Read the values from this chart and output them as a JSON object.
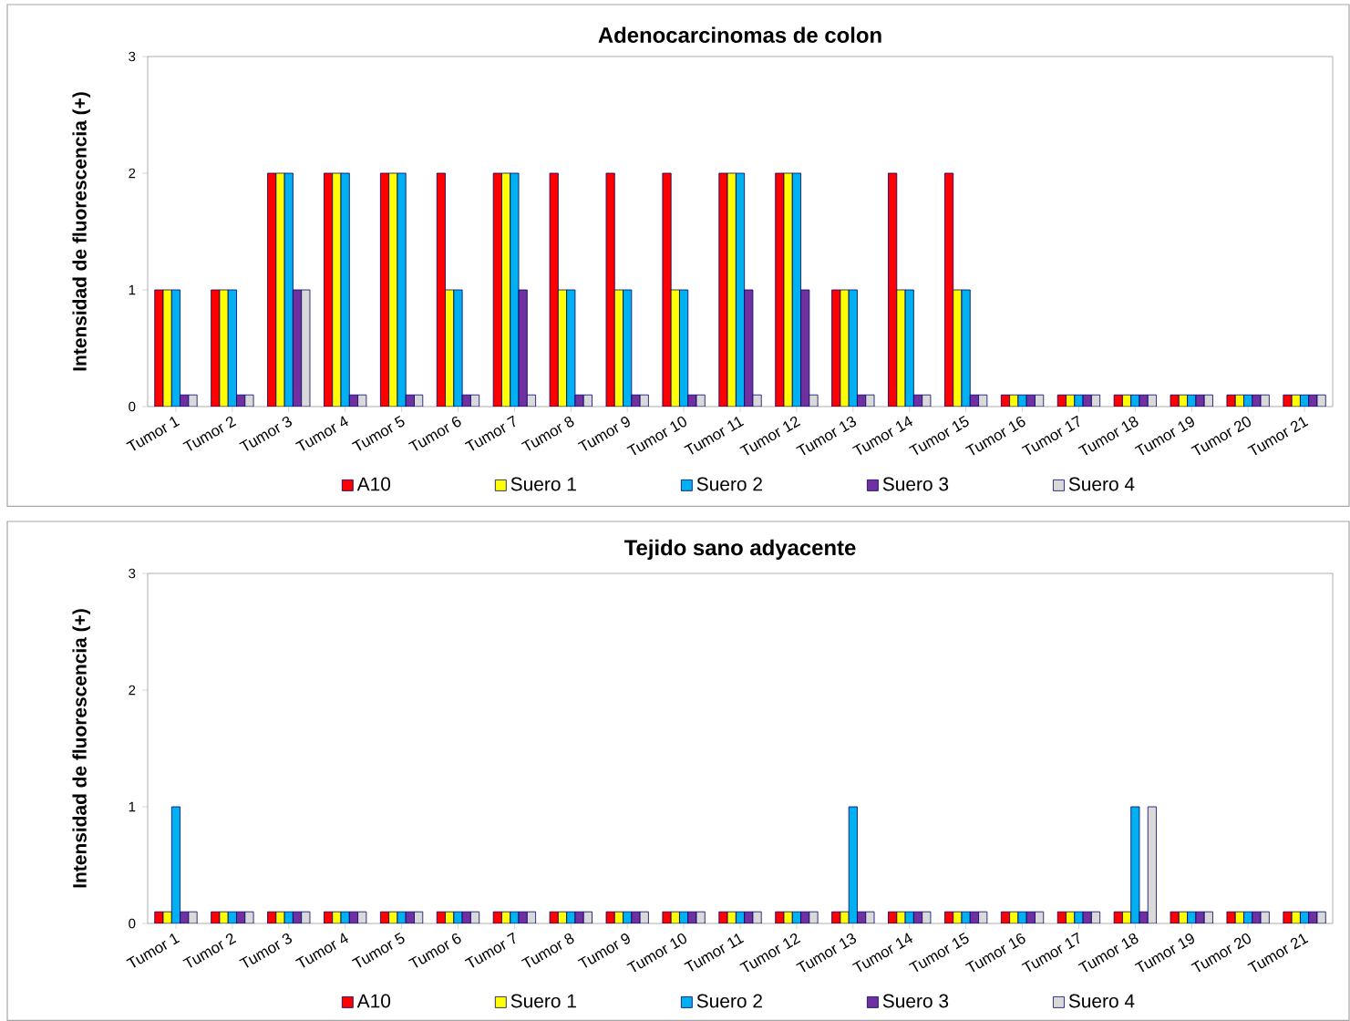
{
  "chart_data": [
    {
      "type": "bar",
      "title": "Adenocarcinomas de colon",
      "ylabel": "Intensidad  de fluorescencia (+)",
      "categories": [
        "Tumor 1",
        "Tumor 2",
        "Tumor 3",
        "Tumor 4",
        "Tumor 5",
        "Tumor 6",
        "Tumor 7",
        "Tumor 8",
        "Tumor 9",
        "Tumor 10",
        "Tumor 11",
        "Tumor 12",
        "Tumor 13",
        "Tumor 14",
        "Tumor 15",
        "Tumor 16",
        "Tumor 17",
        "Tumor 18",
        "Tumor 19",
        "Tumor 20",
        "Tumor 21"
      ],
      "series": [
        {
          "name": "A10",
          "color": "#ff0000",
          "values": [
            1,
            1,
            2,
            2,
            2,
            2,
            2,
            2,
            2,
            2,
            2,
            2,
            1,
            2,
            2,
            0.1,
            0.1,
            0.1,
            0.1,
            0.1,
            0.1
          ]
        },
        {
          "name": "Suero 1",
          "color": "#ffff00",
          "values": [
            1,
            1,
            2,
            2,
            2,
            1,
            2,
            1,
            1,
            1,
            2,
            2,
            1,
            1,
            1,
            0.1,
            0.1,
            0.1,
            0.1,
            0.1,
            0.1
          ]
        },
        {
          "name": "Suero 2",
          "color": "#00b0f0",
          "values": [
            1,
            1,
            2,
            2,
            2,
            1,
            2,
            1,
            1,
            1,
            2,
            2,
            1,
            1,
            1,
            0.1,
            0.1,
            0.1,
            0.1,
            0.1,
            0.1
          ]
        },
        {
          "name": "Suero 3",
          "color": "#7030a0",
          "values": [
            0.1,
            0.1,
            1,
            0.1,
            0.1,
            0.1,
            1,
            0.1,
            0.1,
            0.1,
            1,
            1,
            0.1,
            0.1,
            0.1,
            0.1,
            0.1,
            0.1,
            0.1,
            0.1,
            0.1
          ]
        },
        {
          "name": "Suero 4",
          "color": "#d9d9d9",
          "values": [
            0.1,
            0.1,
            1,
            0.1,
            0.1,
            0.1,
            0.1,
            0.1,
            0.1,
            0.1,
            0.1,
            0.1,
            0.1,
            0.1,
            0.1,
            0.1,
            0.1,
            0.1,
            0.1,
            0.1,
            0.1
          ]
        }
      ],
      "ylim": [
        0,
        3
      ],
      "yticks": [
        0,
        1,
        2,
        3
      ],
      "legend": "bottom"
    },
    {
      "type": "bar",
      "title": "Tejido sano adyacente",
      "ylabel": "Intensidad  de fluorescencia (+)",
      "categories": [
        "Tumor 1",
        "Tumor 2",
        "Tumor 3",
        "Tumor 4",
        "Tumor 5",
        "Tumor 6",
        "Tumor 7",
        "Tumor 8",
        "Tumor 9",
        "Tumor 10",
        "Tumor 11",
        "Tumor 12",
        "Tumor 13",
        "Tumor 14",
        "Tumor 15",
        "Tumor 16",
        "Tumor 17",
        "Tumor 18",
        "Tumor 19",
        "Tumor 20",
        "Tumor 21"
      ],
      "series": [
        {
          "name": "A10",
          "color": "#ff0000",
          "values": [
            0.1,
            0.1,
            0.1,
            0.1,
            0.1,
            0.1,
            0.1,
            0.1,
            0.1,
            0.1,
            0.1,
            0.1,
            0.1,
            0.1,
            0.1,
            0.1,
            0.1,
            0.1,
            0.1,
            0.1,
            0.1
          ]
        },
        {
          "name": "Suero 1",
          "color": "#ffff00",
          "values": [
            0.1,
            0.1,
            0.1,
            0.1,
            0.1,
            0.1,
            0.1,
            0.1,
            0.1,
            0.1,
            0.1,
            0.1,
            0.1,
            0.1,
            0.1,
            0.1,
            0.1,
            0.1,
            0.1,
            0.1,
            0.1
          ]
        },
        {
          "name": "Suero 2",
          "color": "#00b0f0",
          "values": [
            1,
            0.1,
            0.1,
            0.1,
            0.1,
            0.1,
            0.1,
            0.1,
            0.1,
            0.1,
            0.1,
            0.1,
            1,
            0.1,
            0.1,
            0.1,
            0.1,
            1,
            0.1,
            0.1,
            0.1
          ]
        },
        {
          "name": "Suero 3",
          "color": "#7030a0",
          "values": [
            0.1,
            0.1,
            0.1,
            0.1,
            0.1,
            0.1,
            0.1,
            0.1,
            0.1,
            0.1,
            0.1,
            0.1,
            0.1,
            0.1,
            0.1,
            0.1,
            0.1,
            0.1,
            0.1,
            0.1,
            0.1
          ]
        },
        {
          "name": "Suero 4",
          "color": "#d9d9d9",
          "values": [
            0.1,
            0.1,
            0.1,
            0.1,
            0.1,
            0.1,
            0.1,
            0.1,
            0.1,
            0.1,
            0.1,
            0.1,
            0.1,
            0.1,
            0.1,
            0.1,
            0.1,
            1,
            0.1,
            0.1,
            0.1
          ]
        }
      ],
      "ylim": [
        0,
        3
      ],
      "yticks": [
        0,
        1,
        2,
        3
      ],
      "legend": "bottom"
    }
  ]
}
